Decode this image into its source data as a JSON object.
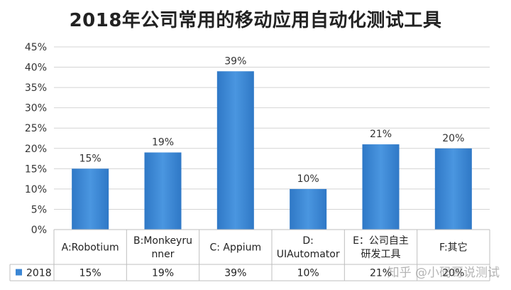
{
  "chart_data": {
    "type": "bar",
    "title": "2018年公司常用的移动应用自动化测试工具",
    "categories": [
      [
        "A:Robotium"
      ],
      [
        "B:Monkeyru",
        "nner"
      ],
      [
        "C:  Appium"
      ],
      [
        "D:",
        "UIAutomator"
      ],
      [
        "E：公司自主",
        "研发工具"
      ],
      [
        "F:其它"
      ]
    ],
    "series": [
      {
        "name": "2018",
        "values": [
          15,
          19,
          39,
          10,
          21,
          20
        ],
        "labels": [
          "15%",
          "19%",
          "39%",
          "10%",
          "21%",
          "20%"
        ]
      }
    ],
    "ylim": [
      0,
      45
    ],
    "yticks": [
      "0%",
      "5%",
      "10%",
      "15%",
      "20%",
      "25%",
      "30%",
      "35%",
      "40%",
      "45%"
    ],
    "grid": true,
    "legend": "data-table-left",
    "bar_color": "#3a86d4"
  },
  "watermark": "知乎 @小码哥说测试"
}
